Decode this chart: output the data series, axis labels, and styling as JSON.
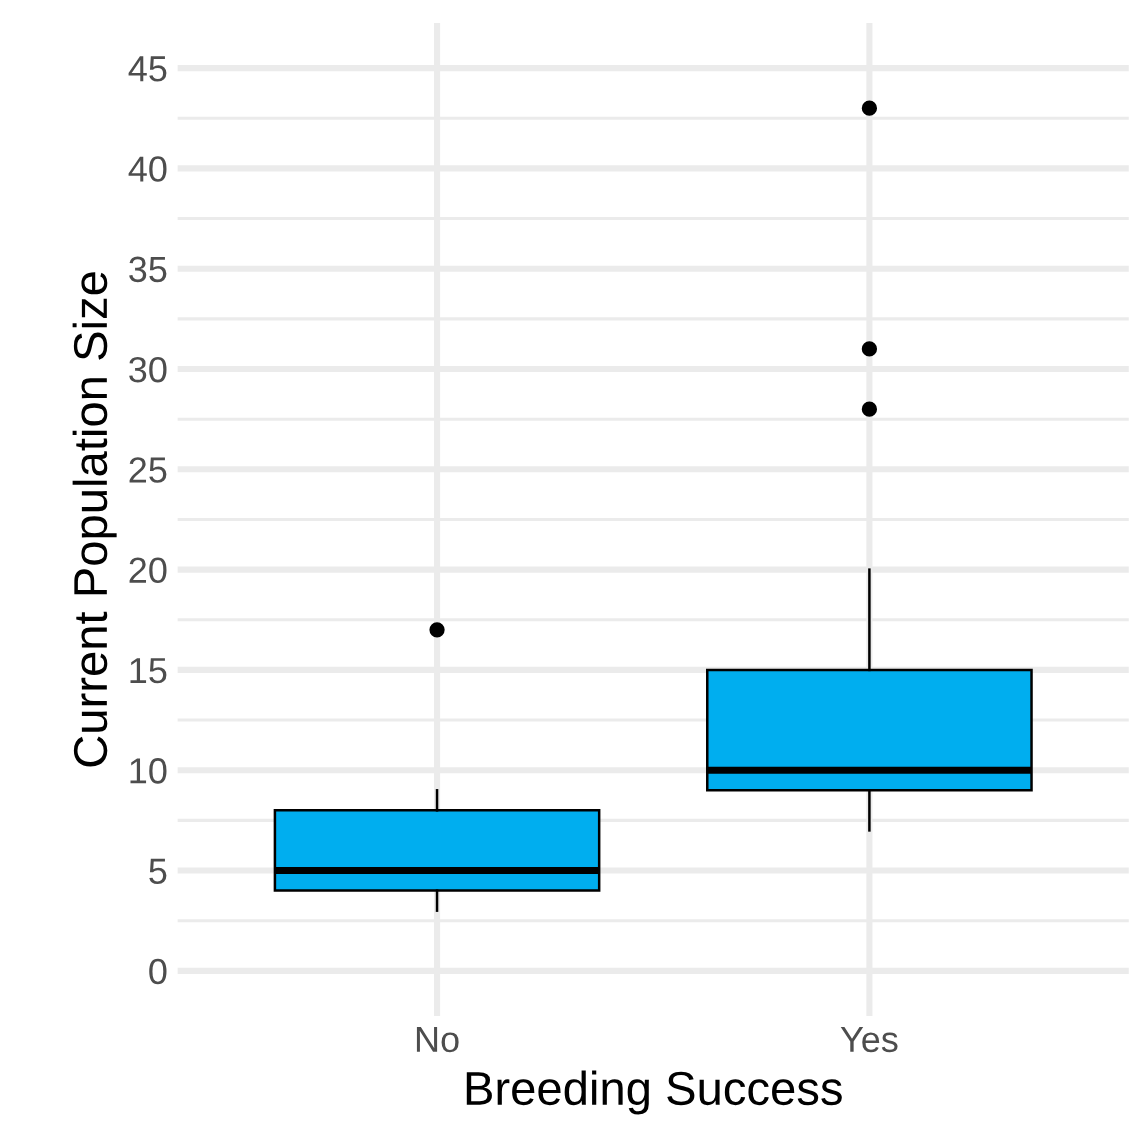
{
  "chart_data": {
    "type": "box",
    "xlabel": "Breeding Success",
    "ylabel": "Current Population Size",
    "categories": [
      "No",
      "Yes"
    ],
    "boxes": [
      {
        "low": 3,
        "q1": 4,
        "median": 5,
        "q3": 8,
        "high": 9,
        "outliers": [
          17
        ]
      },
      {
        "low": 7,
        "q1": 9,
        "median": 10,
        "q3": 15,
        "high": 20,
        "outliers": [
          28,
          31,
          43
        ]
      }
    ],
    "color": "#00aeef",
    "ylim": [
      -2.25,
      47.25
    ],
    "yticks": [
      0,
      {
        "value": 2.5,
        "label": null
      },
      5,
      {
        "value": 7.5,
        "label": null
      },
      10,
      {
        "value": 12.5,
        "label": null
      },
      15,
      {
        "value": 17.5,
        "label": null
      },
      20,
      {
        "value": 22.5,
        "label": null
      },
      25,
      {
        "value": 27.5,
        "label": null
      },
      30,
      {
        "value": 32.5,
        "label": null
      },
      35,
      {
        "value": 37.5,
        "label": null
      },
      40,
      {
        "value": 42.5,
        "label": null
      },
      45
    ],
    "grid": true
  }
}
